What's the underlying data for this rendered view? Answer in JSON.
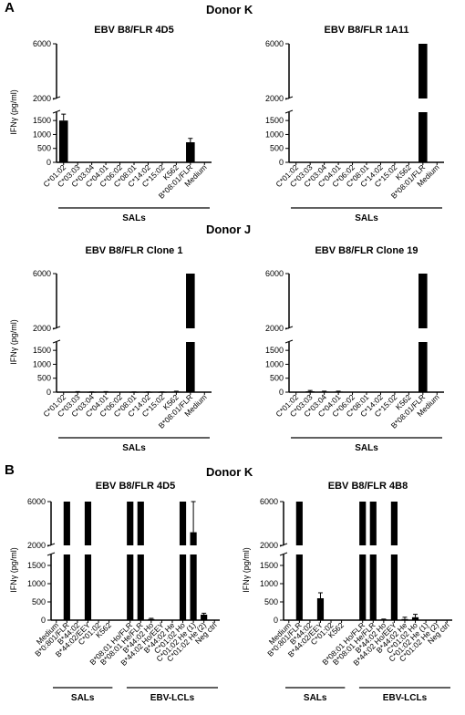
{
  "panel_labels": {
    "a": "A",
    "b": "B"
  },
  "donor_titles": {
    "k1": "Donor K",
    "j": "Donor J",
    "k2": "Donor K"
  },
  "group_labels": {
    "sals": "SALs",
    "ebv": "EBV-LCLs"
  },
  "colors": {
    "bar": "#000000",
    "axis": "#000000",
    "background": "#ffffff"
  },
  "chart_data": [
    {
      "type": "bar",
      "title": "EBV B8/FLR 4D5",
      "ylabel": "IFNγ (pg/ml)",
      "axis_break": [
        1800,
        2000
      ],
      "ylim": [
        0,
        6000
      ],
      "yticks": [
        0,
        500,
        1000,
        1500,
        2000,
        6000
      ],
      "categories": [
        "C*01:02",
        "C*03:03",
        "C*03:04",
        "C*04:01",
        "C*06:02",
        "C*08:01",
        "C*14:02",
        "C*15:02",
        "K562",
        "B*08:01/FLR",
        "Medium"
      ],
      "values": [
        1500,
        0,
        0,
        0,
        0,
        0,
        0,
        0,
        0,
        720,
        0
      ],
      "errors": [
        230,
        0,
        0,
        0,
        0,
        0,
        0,
        0,
        0,
        140,
        0
      ],
      "groups": [
        {
          "label": "SALs",
          "from": 0,
          "to": 10
        }
      ]
    },
    {
      "type": "bar",
      "title": "EBV B8/FLR 1A11",
      "ylabel": "",
      "axis_break": [
        1800,
        2000
      ],
      "ylim": [
        0,
        6000
      ],
      "yticks": [
        0,
        500,
        1000,
        1500,
        2000,
        6000
      ],
      "categories": [
        "C*01:02",
        "C*03:03",
        "C*03:04",
        "C*04:01",
        "C*06:02",
        "C*08:01",
        "C*14:02",
        "C*15:02",
        "K562",
        "B*08:01/FLR",
        "Medium"
      ],
      "values": [
        0,
        0,
        0,
        0,
        0,
        0,
        0,
        0,
        0,
        6000,
        0
      ],
      "errors": [
        0,
        0,
        0,
        0,
        0,
        0,
        0,
        0,
        0,
        0,
        0
      ],
      "groups": [
        {
          "label": "SALs",
          "from": 0,
          "to": 10
        }
      ]
    },
    {
      "type": "bar",
      "title": "EBV B8/FLR Clone 1",
      "ylabel": "IFNγ (pg/ml)",
      "axis_break": [
        1800,
        2000
      ],
      "ylim": [
        0,
        6000
      ],
      "yticks": [
        0,
        500,
        1000,
        1500,
        2000,
        6000
      ],
      "categories": [
        "C*01:02",
        "C*03:03",
        "C*03:04",
        "C*04:01",
        "C*06:02",
        "C*08:01",
        "C*14:02",
        "C*15:02",
        "K562",
        "B*08:01/FLR",
        "Medium"
      ],
      "values": [
        0,
        10,
        5,
        10,
        0,
        5,
        5,
        5,
        20,
        6000,
        0
      ],
      "errors": [
        0,
        10,
        5,
        10,
        0,
        5,
        5,
        5,
        15,
        0,
        0
      ],
      "groups": [
        {
          "label": "SALs",
          "from": 0,
          "to": 10
        }
      ]
    },
    {
      "type": "bar",
      "title": "EBV B8/FLR Clone 19",
      "ylabel": "",
      "axis_break": [
        1800,
        2000
      ],
      "ylim": [
        0,
        6000
      ],
      "yticks": [
        0,
        500,
        1000,
        1500,
        2000,
        6000
      ],
      "categories": [
        "C*01:02",
        "C*03:03",
        "C*03:04",
        "C*04:01",
        "C*06:02",
        "C*08:01",
        "C*14:02",
        "C*15:02",
        "K562",
        "B*08:01/FLR",
        "Medium"
      ],
      "values": [
        0,
        30,
        20,
        20,
        0,
        0,
        0,
        0,
        0,
        6000,
        0
      ],
      "errors": [
        0,
        30,
        15,
        15,
        0,
        0,
        0,
        0,
        0,
        0,
        0
      ],
      "groups": [
        {
          "label": "SALs",
          "from": 0,
          "to": 10
        }
      ]
    },
    {
      "type": "bar",
      "title": "EBV B8/FLR 4D5",
      "ylabel": "IFNγ (pg/ml)",
      "axis_break": [
        1800,
        2000
      ],
      "ylim": [
        0,
        6000
      ],
      "yticks": [
        0,
        500,
        1000,
        1500,
        2000,
        6000
      ],
      "categories": [
        "Medium",
        "B*0:801/FLR",
        "B*44:02",
        "B*44:02/EEY",
        "C*01:02",
        "K562",
        "",
        "B*08:01 Ho/FLR",
        "B*08:01 He/FLR",
        "B*44:02 Ho",
        "B*44:02 Ho/EEY",
        "B*44:02 He",
        "C*01:02 Ho",
        "C*01:02 He (1)",
        "C*01:02 He (2)",
        "Neg ctrl"
      ],
      "values": [
        0,
        6000,
        0,
        6000,
        0,
        0,
        null,
        6000,
        6000,
        30,
        0,
        0,
        6000,
        3200,
        150,
        0
      ],
      "errors": [
        0,
        0,
        0,
        0,
        0,
        0,
        null,
        0,
        0,
        20,
        0,
        0,
        0,
        2800,
        40,
        0
      ],
      "groups": [
        {
          "label": "SALs",
          "from": 0,
          "to": 5
        },
        {
          "label": "EBV-LCLs",
          "from": 7,
          "to": 15
        }
      ]
    },
    {
      "type": "bar",
      "title": "EBV B8/FLR 4B8",
      "ylabel": "IFNγ (pg/ml)",
      "axis_break": [
        1800,
        2000
      ],
      "ylim": [
        0,
        6000
      ],
      "yticks": [
        0,
        500,
        1000,
        1500,
        2000,
        6000
      ],
      "categories": [
        "Medium",
        "B*0:801/FLR",
        "B*44:02",
        "B*44:02/EEY",
        "C*01:02",
        "K562",
        "",
        "B*08:01 Ho/FLR",
        "B*08:01 He/FLR",
        "B*44:02 Ho",
        "B*44:02 Ho/EEY",
        "B*44:02 He",
        "C*01:02 Ho",
        "C*01:02 He (1)",
        "C*01:02 He (2)",
        "Neg ctrl"
      ],
      "values": [
        0,
        6000,
        0,
        600,
        0,
        0,
        null,
        6000,
        6000,
        20,
        6000,
        30,
        80,
        0,
        0,
        0
      ],
      "errors": [
        0,
        0,
        0,
        150,
        0,
        0,
        null,
        0,
        0,
        10,
        0,
        50,
        80,
        0,
        0,
        0
      ],
      "groups": [
        {
          "label": "SALs",
          "from": 0,
          "to": 5
        },
        {
          "label": "EBV-LCLs",
          "from": 7,
          "to": 15
        }
      ]
    }
  ]
}
